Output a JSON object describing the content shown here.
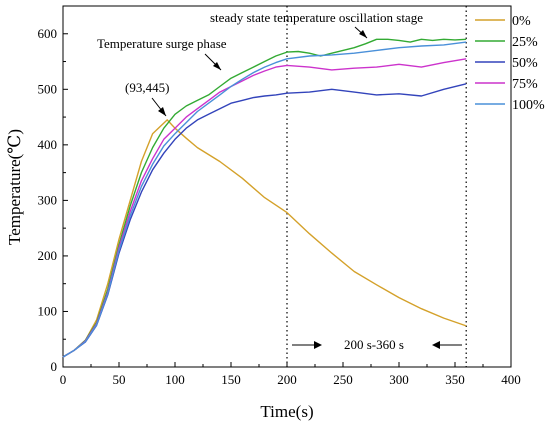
{
  "chart_data": {
    "type": "line",
    "xlabel": "Time(s)",
    "ylabel": "Temperature(℃)",
    "xlim": [
      0,
      400
    ],
    "ylim": [
      0,
      650
    ],
    "xticks": [
      0,
      50,
      100,
      150,
      200,
      250,
      300,
      350,
      400
    ],
    "yticks": [
      0,
      100,
      200,
      300,
      400,
      500,
      600
    ],
    "grid": false,
    "legend_position": "top-right",
    "series": [
      {
        "name": "0%",
        "color": "#d4a12a",
        "x": [
          0,
          10,
          20,
          30,
          40,
          50,
          60,
          70,
          80,
          93,
          100,
          110,
          120,
          140,
          160,
          180,
          200,
          220,
          240,
          260,
          280,
          300,
          320,
          340,
          360
        ],
        "y": [
          18,
          30,
          48,
          85,
          150,
          230,
          300,
          370,
          420,
          445,
          430,
          412,
          395,
          370,
          340,
          305,
          278,
          240,
          205,
          172,
          148,
          125,
          105,
          88,
          74
        ]
      },
      {
        "name": "25%",
        "color": "#33aa33",
        "x": [
          0,
          10,
          20,
          30,
          40,
          50,
          60,
          70,
          80,
          90,
          100,
          110,
          120,
          130,
          140,
          150,
          160,
          170,
          180,
          190,
          200,
          210,
          220,
          230,
          240,
          250,
          260,
          270,
          280,
          290,
          300,
          310,
          320,
          330,
          340,
          350,
          360
        ],
        "y": [
          18,
          30,
          48,
          80,
          140,
          220,
          290,
          350,
          395,
          430,
          455,
          470,
          480,
          490,
          505,
          520,
          530,
          540,
          550,
          560,
          567,
          568,
          565,
          560,
          565,
          570,
          575,
          582,
          590,
          590,
          588,
          585,
          590,
          588,
          590,
          589,
          590
        ]
      },
      {
        "name": "50%",
        "color": "#3344bb",
        "x": [
          0,
          10,
          20,
          30,
          40,
          50,
          60,
          70,
          80,
          90,
          100,
          110,
          120,
          130,
          140,
          150,
          160,
          170,
          180,
          190,
          200,
          220,
          240,
          260,
          280,
          300,
          320,
          340,
          360
        ],
        "y": [
          18,
          30,
          45,
          75,
          130,
          205,
          265,
          315,
          355,
          385,
          410,
          430,
          445,
          455,
          465,
          475,
          480,
          485,
          488,
          490,
          493,
          495,
          500,
          495,
          490,
          492,
          488,
          500,
          510
        ]
      },
      {
        "name": "75%",
        "color": "#cc33cc",
        "x": [
          0,
          10,
          20,
          30,
          40,
          50,
          60,
          70,
          80,
          90,
          100,
          110,
          120,
          130,
          140,
          150,
          160,
          170,
          180,
          190,
          200,
          220,
          240,
          260,
          280,
          300,
          320,
          340,
          360
        ],
        "y": [
          18,
          30,
          47,
          78,
          135,
          215,
          280,
          335,
          375,
          410,
          430,
          450,
          465,
          480,
          495,
          505,
          515,
          525,
          533,
          540,
          543,
          540,
          535,
          538,
          540,
          545,
          540,
          548,
          555
        ]
      },
      {
        "name": "100%",
        "color": "#4a90d9",
        "x": [
          0,
          10,
          20,
          30,
          40,
          50,
          60,
          70,
          80,
          90,
          100,
          110,
          120,
          130,
          140,
          150,
          160,
          170,
          180,
          190,
          200,
          220,
          240,
          260,
          280,
          300,
          320,
          340,
          360
        ],
        "y": [
          18,
          30,
          46,
          76,
          132,
          210,
          272,
          325,
          365,
          398,
          420,
          440,
          460,
          475,
          490,
          505,
          518,
          530,
          540,
          548,
          555,
          560,
          562,
          565,
          570,
          575,
          578,
          580,
          585
        ]
      }
    ],
    "reference_lines_x": [
      200,
      360
    ],
    "annotations": {
      "peak_label": "(93,445)",
      "surge_label": "Temperature surge phase",
      "steady_label": "steady state temperature oscillation stage",
      "range_label": "200 s-360 s"
    }
  }
}
